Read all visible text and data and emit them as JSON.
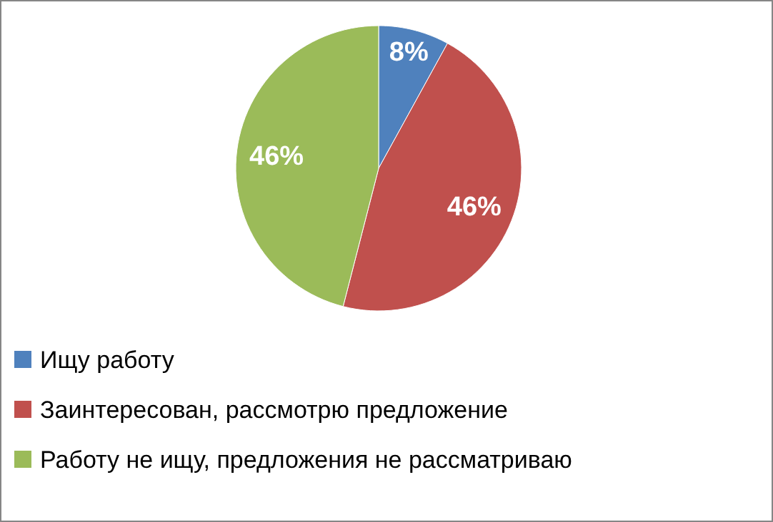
{
  "chart_data": {
    "type": "pie",
    "categories": [
      "Ищу работу",
      "Заинтересован, рассмотрю предложение",
      "Работу не ищу, предложения не рассматриваю"
    ],
    "values": [
      8,
      46,
      46
    ],
    "colors": [
      "#4f81bd",
      "#c0504d",
      "#9bbb59"
    ],
    "value_labels": [
      "8%",
      "46%",
      "46%"
    ],
    "legend": "bottom"
  }
}
